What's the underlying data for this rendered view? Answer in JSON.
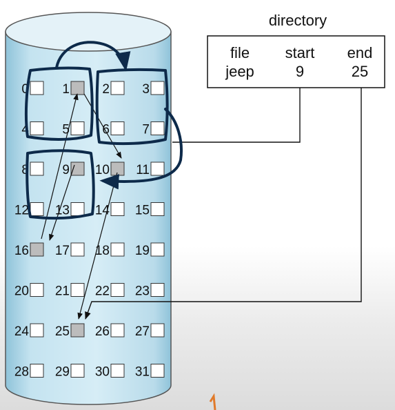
{
  "directory": {
    "title": "directory",
    "headers": [
      "file",
      "start",
      "end"
    ],
    "row": [
      "jeep",
      "9",
      "25"
    ]
  },
  "disk": {
    "blocks": [
      "0",
      "1",
      "2",
      "3",
      "4",
      "5",
      "6",
      "7",
      "8",
      "9",
      "10",
      "11",
      "12",
      "13",
      "14",
      "15",
      "16",
      "17",
      "18",
      "19",
      "20",
      "21",
      "22",
      "23",
      "24",
      "25",
      "26",
      "27",
      "28",
      "29",
      "30",
      "31"
    ],
    "used_blocks": [
      9,
      16,
      1,
      10,
      25
    ],
    "colors": {
      "used": "#bcbcbc",
      "free": "#ffffff",
      "cylinder": "#bfe0ee",
      "ink": "#0d2a4a"
    }
  }
}
